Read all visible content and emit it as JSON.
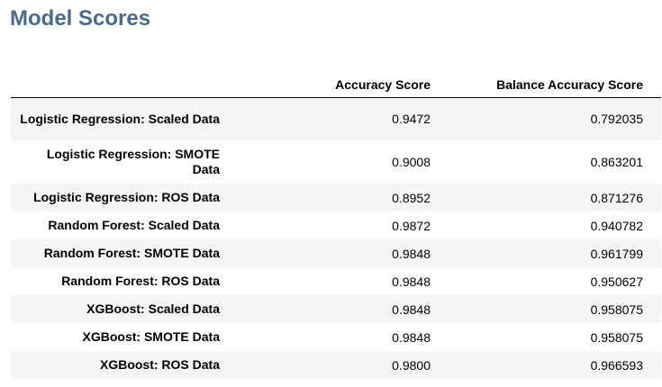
{
  "title": "Model Scores",
  "table": {
    "columns": [
      "",
      "Accuracy Score",
      "Balance Accuracy Score"
    ],
    "rows": [
      {
        "label": "Logistic Regression: Scaled Data",
        "accuracy": "0.9472",
        "balance": "0.792035"
      },
      {
        "label": "Logistic Regression: SMOTE Data",
        "accuracy": "0.9008",
        "balance": "0.863201"
      },
      {
        "label": "Logistic Regression: ROS Data",
        "accuracy": "0.8952",
        "balance": "0.871276"
      },
      {
        "label": "Random Forest: Scaled Data",
        "accuracy": "0.9872",
        "balance": "0.940782"
      },
      {
        "label": "Random Forest: SMOTE Data",
        "accuracy": "0.9848",
        "balance": "0.961799"
      },
      {
        "label": "Random Forest: ROS Data",
        "accuracy": "0.9848",
        "balance": "0.950627"
      },
      {
        "label": "XGBoost: Scaled Data",
        "accuracy": "0.9848",
        "balance": "0.958075"
      },
      {
        "label": "XGBoost: SMOTE Data",
        "accuracy": "0.9848",
        "balance": "0.958075"
      },
      {
        "label": "XGBoost: ROS Data",
        "accuracy": "0.9800",
        "balance": "0.966593"
      }
    ]
  }
}
